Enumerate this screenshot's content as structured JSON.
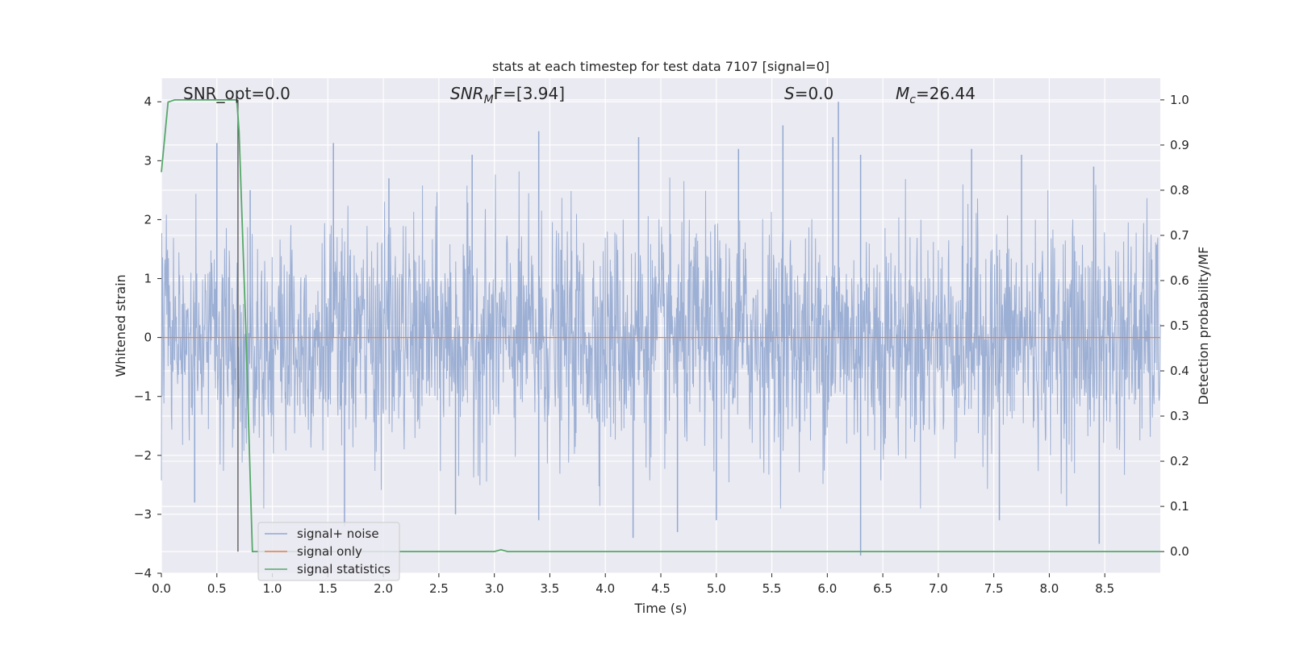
{
  "chart_data": {
    "type": "line",
    "title": "stats at each timestep for test data 7107 [signal=0]",
    "xlabel": "Time (s)",
    "ylabel_left": "Whitened strain",
    "ylabel_right": "Detection probability/MF",
    "xlim": [
      0.0,
      9.0
    ],
    "ylim_left": [
      -4.0,
      4.4
    ],
    "ylim_right": [
      -0.048,
      1.048
    ],
    "x_ticks": [
      "0.0",
      "0.5",
      "1.0",
      "1.5",
      "2.0",
      "2.5",
      "3.0",
      "3.5",
      "4.0",
      "4.5",
      "5.0",
      "5.5",
      "6.0",
      "6.5",
      "7.0",
      "7.5",
      "8.0",
      "8.5"
    ],
    "y_ticks_left": [
      "−4",
      "−3",
      "−2",
      "−1",
      "0",
      "1",
      "2",
      "3",
      "4"
    ],
    "y_ticks_right": [
      "0.0",
      "0.1",
      "0.2",
      "0.3",
      "0.4",
      "0.5",
      "0.6",
      "0.7",
      "0.8",
      "0.9",
      "1.0"
    ],
    "grid": true,
    "legend_position": "lower-left",
    "annotations": {
      "snr_opt": "SNR_opt=0.0",
      "snr_mf_main": "SNR",
      "snr_mf_sub": "M",
      "snr_mf_rest": "F=[3.94]",
      "s_var": "S",
      "s_rest": "=0.0",
      "mc_main": "M",
      "mc_sub": "c",
      "mc_rest": "=26.44"
    },
    "marker_line_x": 0.69,
    "series": [
      {
        "name": "signal+ noise",
        "axis": "left",
        "color": "#93a8d0",
        "description_of_envelope": "dense whitened noise, approx. between -2.6 and 2.8 with peaks",
        "peaks_x": [
          0.5,
          0.8,
          1.55,
          2.05,
          2.8,
          3.4,
          4.3,
          5.2,
          5.6,
          6.05,
          6.1,
          6.3,
          7.3,
          7.75,
          8.4
        ],
        "peaks_y": [
          3.3,
          2.5,
          3.3,
          2.7,
          3.1,
          3.5,
          3.4,
          3.2,
          3.6,
          3.4,
          4.0,
          3.1,
          3.2,
          3.1,
          2.9
        ],
        "troughs_x": [
          0.3,
          1.65,
          2.65,
          3.4,
          4.25,
          4.65,
          5.0,
          6.3,
          7.55,
          8.45
        ],
        "troughs_y": [
          -2.8,
          -3.2,
          -3.0,
          -3.1,
          -3.4,
          -3.3,
          -3.1,
          -3.7,
          -3.1,
          -3.5
        ]
      },
      {
        "name": "signal only",
        "axis": "left",
        "color": "#dd8452",
        "x": [
          0.0,
          9.0
        ],
        "y": [
          0.0,
          0.0
        ]
      },
      {
        "name": "signal statistics",
        "axis": "right",
        "color": "#55a868",
        "x": [
          0.0,
          0.06,
          0.12,
          0.2,
          0.4,
          0.6,
          0.68,
          0.7,
          0.76,
          0.82,
          0.86,
          1.0,
          2.0,
          2.95,
          3.0,
          3.06,
          3.12,
          3.2,
          4.0,
          6.0,
          8.0,
          9.0
        ],
        "y": [
          0.84,
          0.995,
          1.0,
          1.0,
          1.0,
          1.0,
          1.0,
          0.93,
          0.5,
          0.0,
          0.0,
          0.0,
          0.0,
          0.0,
          0.0,
          0.004,
          0.0,
          0.0,
          0.0,
          0.0,
          0.0,
          0.0
        ]
      }
    ]
  }
}
